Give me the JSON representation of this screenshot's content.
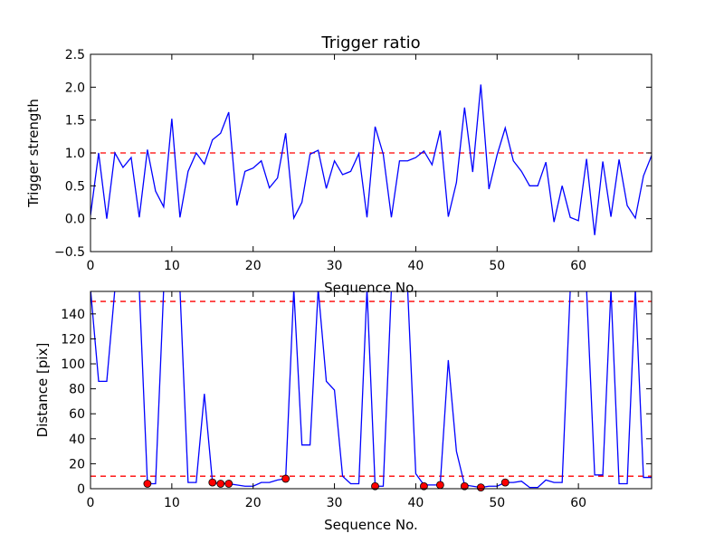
{
  "chart_data": [
    {
      "type": "line",
      "title": "Trigger ratio",
      "xlabel": "Sequence No.",
      "ylabel": "Trigger strength",
      "xlim": [
        0,
        69
      ],
      "ylim": [
        -0.5,
        2.5
      ],
      "xticks": [
        "0",
        "10",
        "20",
        "30",
        "40",
        "50",
        "60"
      ],
      "yticks": [
        "−0.5",
        "0.0",
        "0.5",
        "1.0",
        "1.5",
        "2.0",
        "2.5"
      ],
      "grid": false,
      "line_color": "#0000ff",
      "threshold_color": "#ff0000",
      "thresholds": [
        1.0
      ],
      "x": [
        0,
        1,
        2,
        3,
        4,
        5,
        6,
        7,
        8,
        9,
        10,
        11,
        12,
        13,
        14,
        15,
        16,
        17,
        18,
        19,
        20,
        21,
        22,
        23,
        24,
        25,
        26,
        27,
        28,
        29,
        30,
        31,
        32,
        33,
        34,
        35,
        36,
        37,
        38,
        39,
        40,
        41,
        42,
        43,
        44,
        45,
        46,
        47,
        48,
        49,
        50,
        51,
        52,
        53,
        54,
        55,
        56,
        57,
        58,
        59,
        60,
        61,
        62,
        63,
        64,
        65,
        66,
        67,
        68,
        69
      ],
      "series": [
        {
          "values": [
            0.05,
            1.0,
            0.0,
            1.0,
            0.78,
            0.93,
            0.02,
            1.05,
            0.42,
            0.18,
            1.52,
            0.02,
            0.72,
            1.0,
            0.83,
            1.2,
            1.3,
            1.62,
            0.2,
            0.72,
            0.77,
            0.88,
            0.47,
            0.62,
            1.3,
            0.01,
            0.25,
            0.98,
            1.04,
            0.46,
            0.88,
            0.67,
            0.72,
            0.99,
            0.02,
            1.4,
            0.98,
            0.02,
            0.88,
            0.88,
            0.93,
            1.03,
            0.82,
            1.34,
            0.03,
            0.55,
            1.69,
            0.71,
            2.04,
            0.45,
            0.97,
            1.38,
            0.88,
            0.72,
            0.5,
            0.5,
            0.86,
            -0.05,
            0.5,
            0.02,
            -0.03,
            0.91,
            -0.25,
            0.87,
            0.03,
            0.9,
            0.2,
            0.01,
            0.65,
            0.96
          ]
        }
      ]
    },
    {
      "type": "line",
      "title": "",
      "xlabel": "Sequence No.",
      "ylabel": "Distance [pix]",
      "xlim": [
        0,
        69
      ],
      "ylim": [
        0,
        158
      ],
      "xticks": [
        "0",
        "10",
        "20",
        "30",
        "40",
        "50",
        "60"
      ],
      "yticks": [
        "0",
        "20",
        "40",
        "60",
        "80",
        "100",
        "120",
        "140"
      ],
      "grid": false,
      "line_color": "#0000ff",
      "marker_color": "#ff0000",
      "thresholds": [
        10,
        150
      ],
      "x": [
        0,
        1,
        2,
        3,
        4,
        5,
        6,
        7,
        8,
        9,
        10,
        11,
        12,
        13,
        14,
        15,
        16,
        17,
        18,
        19,
        20,
        21,
        22,
        23,
        24,
        25,
        26,
        27,
        28,
        29,
        30,
        31,
        32,
        33,
        34,
        35,
        36,
        37,
        38,
        39,
        40,
        41,
        42,
        43,
        44,
        45,
        46,
        47,
        48,
        49,
        50,
        51,
        52,
        53,
        54,
        55,
        56,
        57,
        58,
        59,
        60,
        61,
        62,
        63,
        64,
        65,
        66,
        67,
        68,
        69
      ],
      "series": [
        {
          "values": [
            160,
            86,
            86,
            160,
            160,
            160,
            160,
            4,
            4,
            160,
            160,
            160,
            5,
            5,
            76,
            5,
            4,
            4,
            3,
            2,
            2,
            5,
            5,
            7,
            8,
            160,
            35,
            35,
            160,
            86,
            79,
            10,
            4,
            4,
            160,
            2,
            2,
            160,
            160,
            160,
            12,
            3,
            3,
            3,
            103,
            30,
            3,
            2,
            1,
            2,
            2,
            5,
            5,
            6,
            1,
            1,
            7,
            5,
            5,
            160,
            160,
            160,
            11,
            11,
            160,
            4,
            4,
            160,
            9,
            9
          ]
        },
        {
          "name": "",
          "marker": "circle",
          "x": [
            7,
            15,
            16,
            17,
            24,
            35,
            41,
            43,
            46,
            48,
            51
          ],
          "values": [
            4,
            5,
            4,
            4,
            8,
            2,
            2,
            3,
            2,
            1,
            5
          ]
        }
      ]
    }
  ]
}
